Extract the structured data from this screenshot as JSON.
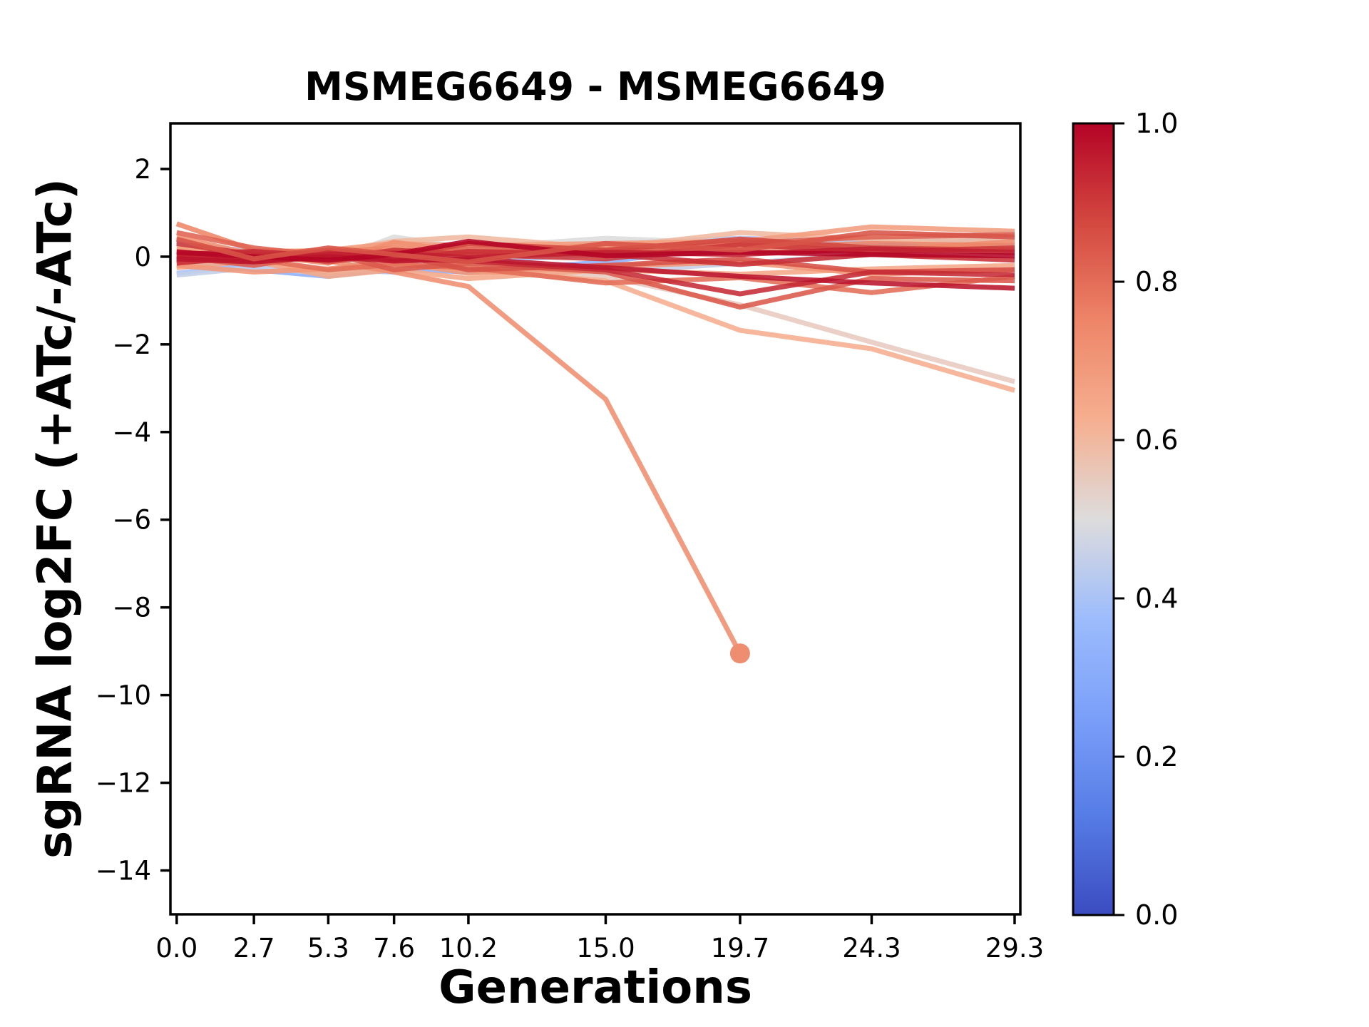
{
  "title": "MSMEG6649 - MSMEG6649",
  "chart_data": {
    "type": "line",
    "title": "MSMEG6649 - MSMEG6649",
    "xlabel": "Generations",
    "ylabel": "sgRNA log2FC (+ATc/-ATc)",
    "x": [
      0.0,
      2.7,
      5.3,
      7.6,
      10.2,
      15.0,
      19.7,
      24.3,
      29.3
    ],
    "x_ticks": [
      {
        "value": 0.0,
        "label": "0.0"
      },
      {
        "value": 2.7,
        "label": "2.7"
      },
      {
        "value": 5.3,
        "label": "5.3"
      },
      {
        "value": 7.6,
        "label": "7.6"
      },
      {
        "value": 10.2,
        "label": "10.2"
      },
      {
        "value": 15.0,
        "label": "15.0"
      },
      {
        "value": 19.7,
        "label": "19.7"
      },
      {
        "value": 24.3,
        "label": "24.3"
      },
      {
        "value": 29.3,
        "label": "29.3"
      }
    ],
    "y_ticks": [
      {
        "value": 2,
        "label": "2"
      },
      {
        "value": 0,
        "label": "0"
      },
      {
        "value": -2,
        "label": "−2"
      },
      {
        "value": -4,
        "label": "−4"
      },
      {
        "value": -6,
        "label": "−6"
      },
      {
        "value": -8,
        "label": "−8"
      },
      {
        "value": -10,
        "label": "−10"
      },
      {
        "value": -12,
        "label": "−12"
      },
      {
        "value": -14,
        "label": "−14"
      }
    ],
    "xlim": [
      -0.22,
      29.5
    ],
    "ylim": [
      -15.0,
      3.04
    ],
    "grid": false,
    "line_width": 7,
    "line_opacity": 0.88,
    "series": [
      {
        "c": 0.25,
        "y": [
          0.35,
          0.02,
          -0.08,
          0.0,
          0.1,
          0.18,
          0.22,
          0.25,
          0.3
        ]
      },
      {
        "c": 0.32,
        "y": [
          -0.05,
          -0.3,
          -0.45,
          -0.28,
          -0.35,
          -0.12,
          0.28,
          0.1,
          0.5
        ]
      },
      {
        "c": 0.4,
        "y": [
          -0.38,
          -0.18,
          -0.3,
          -0.35,
          -0.1,
          0.05,
          0.15,
          0.38,
          0.3
        ]
      },
      {
        "c": 0.42,
        "y": [
          0.3,
          0.12,
          0.05,
          0.1,
          0.22,
          0.3,
          0.42,
          0.35,
          0.55
        ]
      },
      {
        "c": 0.45,
        "y": [
          -0.42,
          -0.25,
          -0.38,
          -0.2,
          -0.28,
          -0.35,
          -0.15,
          0.05,
          0.45
        ]
      },
      {
        "c": 0.5,
        "y": [
          0.0,
          0.08,
          -0.12,
          0.45,
          0.2,
          0.42,
          0.3,
          0.45,
          0.1
        ]
      },
      {
        "c": 0.55,
        "y": [
          0.05,
          -0.12,
          -0.28,
          -0.08,
          -0.22,
          -0.45,
          -1.1,
          -1.95,
          -2.85
        ]
      },
      {
        "c": 0.6,
        "y": [
          0.18,
          -0.05,
          0.1,
          0.35,
          0.45,
          0.2,
          0.55,
          0.4,
          0.35
        ]
      },
      {
        "c": 0.63,
        "y": [
          0.1,
          -0.08,
          -0.35,
          -0.18,
          -0.3,
          -0.55,
          -1.68,
          -2.1,
          -3.05
        ]
      },
      {
        "c": 0.65,
        "y": [
          -0.25,
          -0.1,
          -0.45,
          -0.3,
          -0.5,
          -0.3,
          -0.4,
          -0.28,
          -0.2
        ]
      },
      {
        "c": 0.68,
        "y": [
          0.2,
          0.1,
          0.15,
          0.3,
          0.25,
          0.3,
          0.35,
          0.68,
          0.58
        ]
      },
      {
        "c": 0.7,
        "y": [
          -0.2,
          -0.35,
          -0.28,
          -0.12,
          -0.38,
          -0.22,
          -0.12,
          -0.4,
          -0.3
        ]
      },
      {
        "c": 0.72,
        "y": [
          0.45,
          0.05,
          -0.15,
          0.33,
          0.1,
          0.26,
          0.2,
          0.12,
          0.35
        ]
      },
      {
        "c": 0.75,
        "y": [
          0.75,
          0.15,
          0.1,
          0.2,
          0.08,
          0.15,
          0.22,
          0.3,
          0.25
        ]
      },
      {
        "c": 0.725,
        "y": [
          0.1,
          0.0,
          -0.1,
          -0.35,
          -0.68,
          -3.25,
          -9.05
        ],
        "end_marker": true
      },
      {
        "c": 0.8,
        "y": [
          -0.12,
          -0.05,
          -0.3,
          -0.18,
          -0.25,
          -0.6,
          -0.48,
          -0.82,
          -0.45
        ]
      },
      {
        "c": 0.82,
        "y": [
          0.55,
          0.2,
          0.02,
          0.12,
          0.18,
          0.1,
          0.3,
          0.45,
          0.5
        ]
      },
      {
        "c": 0.84,
        "y": [
          0.0,
          -0.2,
          0.08,
          -0.3,
          -0.15,
          -0.35,
          -1.15,
          -0.5,
          -0.55
        ]
      },
      {
        "c": 0.86,
        "y": [
          -0.05,
          0.1,
          -0.12,
          0.05,
          -0.3,
          -0.2,
          -0.05,
          -0.35,
          -0.3
        ]
      },
      {
        "c": 0.88,
        "y": [
          0.12,
          -0.08,
          0.15,
          0.02,
          0.3,
          0.15,
          0.4,
          0.2,
          0.15
        ]
      },
      {
        "c": 0.9,
        "y": [
          0.3,
          0.05,
          -0.05,
          0.15,
          0.05,
          -0.05,
          0.28,
          0.12,
          0.2
        ]
      },
      {
        "c": 0.92,
        "y": [
          -0.15,
          0.02,
          0.1,
          -0.08,
          0.12,
          0.05,
          -0.18,
          0.05,
          -0.08
        ]
      },
      {
        "c": 0.93,
        "y": [
          0.05,
          0.12,
          0.0,
          -0.05,
          -0.1,
          -0.3,
          -0.85,
          -0.35,
          -0.42
        ]
      },
      {
        "c": 0.95,
        "y": [
          0.0,
          -0.1,
          0.05,
          0.08,
          -0.02,
          0.1,
          0.05,
          0.18,
          0.1
        ]
      },
      {
        "c": 0.97,
        "y": [
          -0.05,
          -0.12,
          0.0,
          -0.1,
          -0.05,
          -0.25,
          -0.45,
          -0.6,
          -0.72
        ]
      },
      {
        "c": 1.0,
        "y": [
          0.1,
          0.0,
          -0.08,
          0.05,
          0.35,
          0.02,
          0.1,
          0.05,
          0.02
        ]
      },
      {
        "c": 0.85,
        "y": [
          0.4,
          -0.05,
          0.2,
          0.05,
          -0.12,
          0.3,
          0.15,
          0.55,
          0.45
        ]
      }
    ],
    "end_marker_radius": 14,
    "legend": "none"
  },
  "colorbar": {
    "cmap_name": "coolwarm",
    "vmin": 0.0,
    "vmax": 1.0,
    "ticks": [
      {
        "value": 1.0,
        "label": "1.0"
      },
      {
        "value": 0.8,
        "label": "0.8"
      },
      {
        "value": 0.6,
        "label": "0.6"
      },
      {
        "value": 0.4,
        "label": "0.4"
      },
      {
        "value": 0.2,
        "label": "0.2"
      },
      {
        "value": 0.0,
        "label": "0.0"
      }
    ],
    "cmap_anchors": [
      [
        0.0,
        "#3b4cc0"
      ],
      [
        0.125,
        "#567ce6"
      ],
      [
        0.25,
        "#7a9ff9"
      ],
      [
        0.375,
        "#9dbcfc"
      ],
      [
        0.5,
        "#dddcdc"
      ],
      [
        0.625,
        "#f5af90"
      ],
      [
        0.75,
        "#ee8568"
      ],
      [
        0.875,
        "#d34840"
      ],
      [
        1.0,
        "#b40426"
      ]
    ]
  },
  "colors": {
    "spine": "#000000",
    "background": "#ffffff"
  }
}
